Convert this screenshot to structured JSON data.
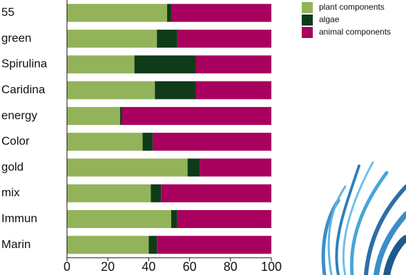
{
  "chart_data": {
    "type": "bar",
    "orientation": "horizontal",
    "stacked": true,
    "categories": [
      "55",
      "green",
      "Spirulina",
      "Caridina",
      "energy",
      "Color",
      "gold",
      "mix",
      "Immun",
      "Marin"
    ],
    "series": [
      {
        "name": "plant components",
        "color": "#93b35a",
        "values": [
          49,
          44,
          33,
          43,
          26,
          37,
          59,
          41,
          51,
          40
        ]
      },
      {
        "name": "algae",
        "color": "#0f3b1a",
        "values": [
          2,
          10,
          30,
          20,
          1,
          5,
          6,
          5,
          3,
          4
        ]
      },
      {
        "name": "animal components",
        "color": "#a8005e",
        "values": [
          49,
          46,
          37,
          37,
          73,
          58,
          35,
          54,
          46,
          56
        ]
      }
    ],
    "xlim": [
      0,
      100
    ],
    "xticks": [
      0,
      20,
      40,
      60,
      80,
      100
    ],
    "legend": "top-right"
  }
}
